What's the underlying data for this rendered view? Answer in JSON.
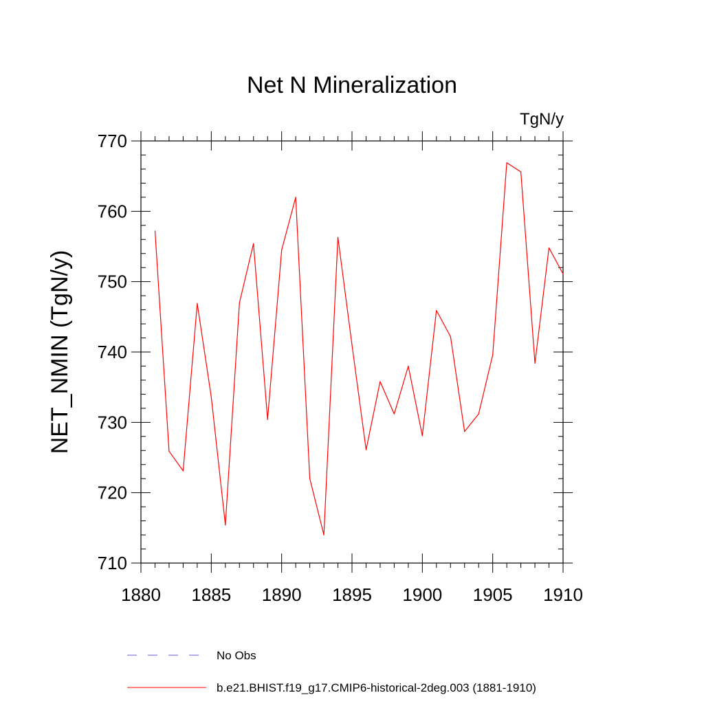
{
  "chart_data": {
    "type": "line",
    "title": "Net N Mineralization",
    "units_label": "TgN/y",
    "xlabel": "",
    "ylabel": "NET_NMIN  (TgN/y)",
    "xlim": [
      1880,
      1910
    ],
    "ylim": [
      710,
      770
    ],
    "x_ticks": [
      1880,
      1885,
      1890,
      1895,
      1900,
      1905,
      1910
    ],
    "y_ticks": [
      710,
      720,
      730,
      740,
      750,
      760,
      770
    ],
    "y_minor_step": 2,
    "x_minor_step": 1,
    "grid": false,
    "legend_position": "bottom",
    "series": [
      {
        "name": "No Obs",
        "style": "dashed",
        "color": "#6a5acd",
        "x": [],
        "values": []
      },
      {
        "name": "b.e21.BHIST.f19_g17.CMIP6-historical-2deg.003 (1881-1910)",
        "style": "solid",
        "color": "#ff0000",
        "x": [
          1881,
          1882,
          1883,
          1884,
          1885,
          1886,
          1887,
          1888,
          1889,
          1890,
          1891,
          1892,
          1893,
          1894,
          1895,
          1896,
          1897,
          1898,
          1899,
          1900,
          1901,
          1902,
          1903,
          1904,
          1905,
          1906,
          1907,
          1908,
          1909,
          1910
        ],
        "values": [
          757.2,
          725.9,
          723.1,
          746.9,
          733.6,
          715.4,
          747.0,
          755.4,
          730.4,
          754.5,
          762.0,
          722.0,
          714.0,
          756.3,
          741.0,
          726.1,
          735.8,
          731.2,
          738.0,
          728.1,
          745.9,
          742.2,
          728.7,
          731.2,
          739.6,
          766.9,
          765.6,
          738.4,
          754.8,
          751.1
        ]
      }
    ]
  }
}
